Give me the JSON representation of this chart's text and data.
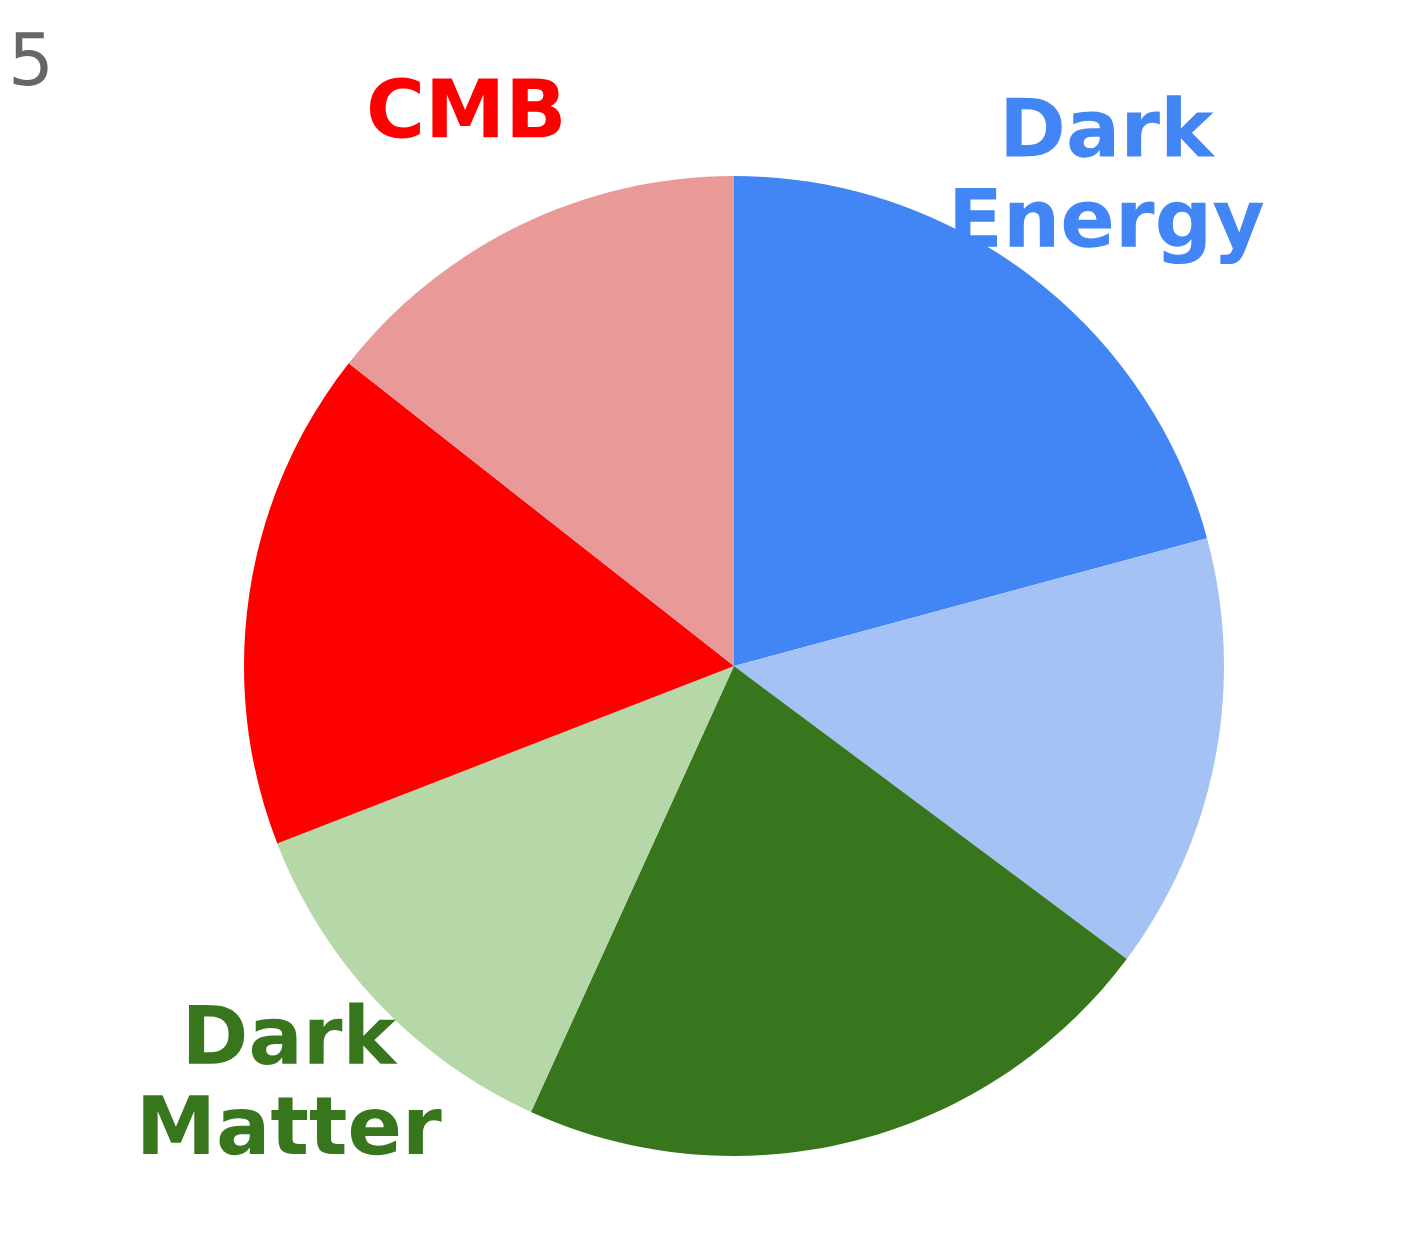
{
  "chart_data": {
    "type": "pie",
    "categories": [
      "Dark Energy",
      null,
      null,
      "Dark Matter",
      null,
      "CMB"
    ],
    "values": [
      20.8,
      14.4,
      21.6,
      12.3,
      16.5,
      14.4
    ],
    "colors": [
      "#4285f4",
      "#a4c2f4",
      "#38761d",
      "#b6d7a8",
      "#ff0000",
      "#ea9999"
    ],
    "annotations": [
      "5"
    ]
  }
}
